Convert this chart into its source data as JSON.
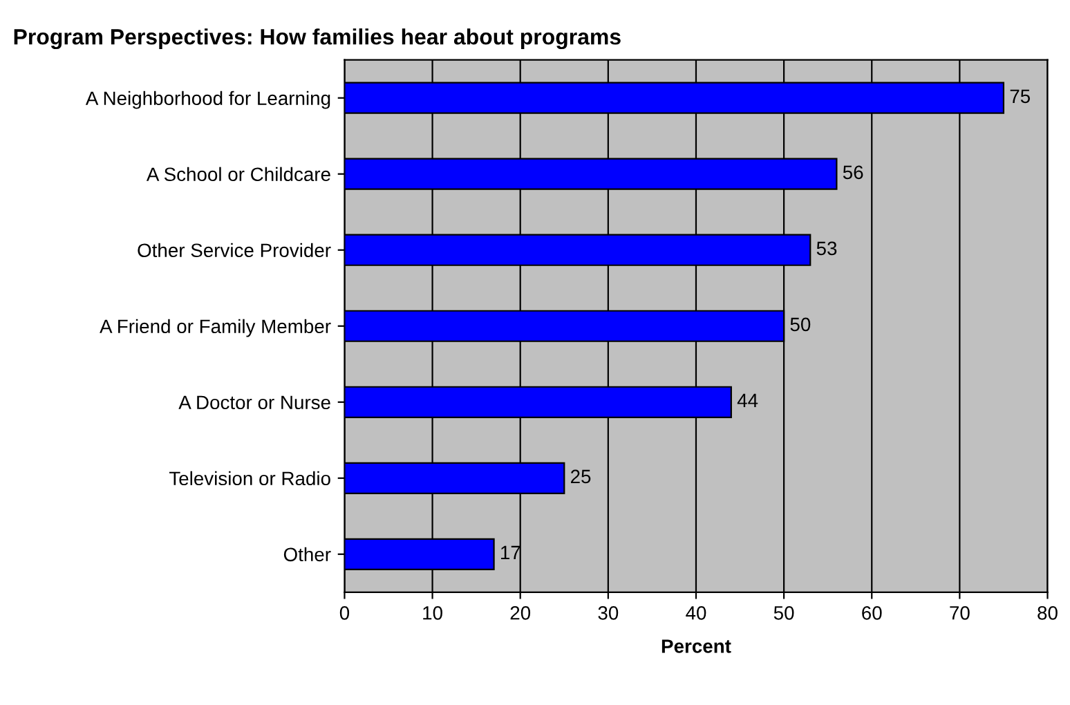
{
  "chart_data": {
    "type": "bar",
    "orientation": "horizontal",
    "title": "Program Perspectives: How families hear about programs",
    "xlabel": "Percent",
    "categories": [
      "A Neighborhood for Learning",
      "A School or Childcare",
      "Other Service Provider",
      "A Friend or Family Member",
      "A Doctor or Nurse",
      "Television or Radio",
      "Other"
    ],
    "values": [
      75,
      56,
      53,
      50,
      44,
      25,
      17
    ],
    "color": "#0000ff",
    "xlim": [
      0,
      80
    ],
    "xticks": [
      0,
      10,
      20,
      30,
      40,
      50,
      60,
      70,
      80
    ],
    "grid": "x",
    "data_labels": true
  }
}
